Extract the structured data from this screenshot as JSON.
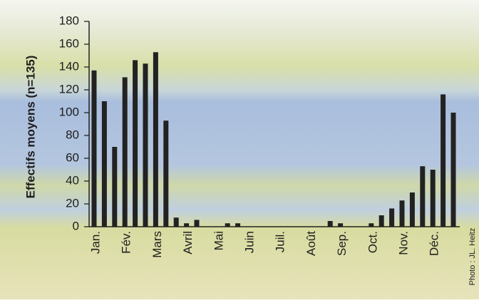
{
  "chart_data": {
    "type": "bar",
    "y_label": "Effectifs moyens (n=135)",
    "credit": "Photo : JL. Heitz",
    "categories": [
      "Jan.",
      null,
      null,
      "Fév.",
      null,
      null,
      "Mars",
      null,
      null,
      "Avril",
      null,
      null,
      "Mai",
      null,
      null,
      "Juin",
      null,
      null,
      "Juil.",
      null,
      null,
      "Août",
      null,
      null,
      "Sep.",
      null,
      null,
      "Oct.",
      null,
      null,
      "Nov.",
      null,
      null,
      "Déc.",
      null,
      null
    ],
    "values": [
      137,
      110,
      70,
      131,
      146,
      143,
      153,
      93,
      8,
      3,
      6,
      0,
      0,
      3,
      3,
      0,
      0,
      0,
      0,
      0,
      0,
      0,
      0,
      5,
      3,
      0,
      0,
      3,
      10,
      16,
      23,
      30,
      53,
      50,
      116,
      100
    ],
    "color": "#222222",
    "ylim": [
      0,
      180
    ],
    "yticks": [
      0,
      20,
      40,
      60,
      80,
      100,
      120,
      140,
      160,
      180
    ]
  }
}
